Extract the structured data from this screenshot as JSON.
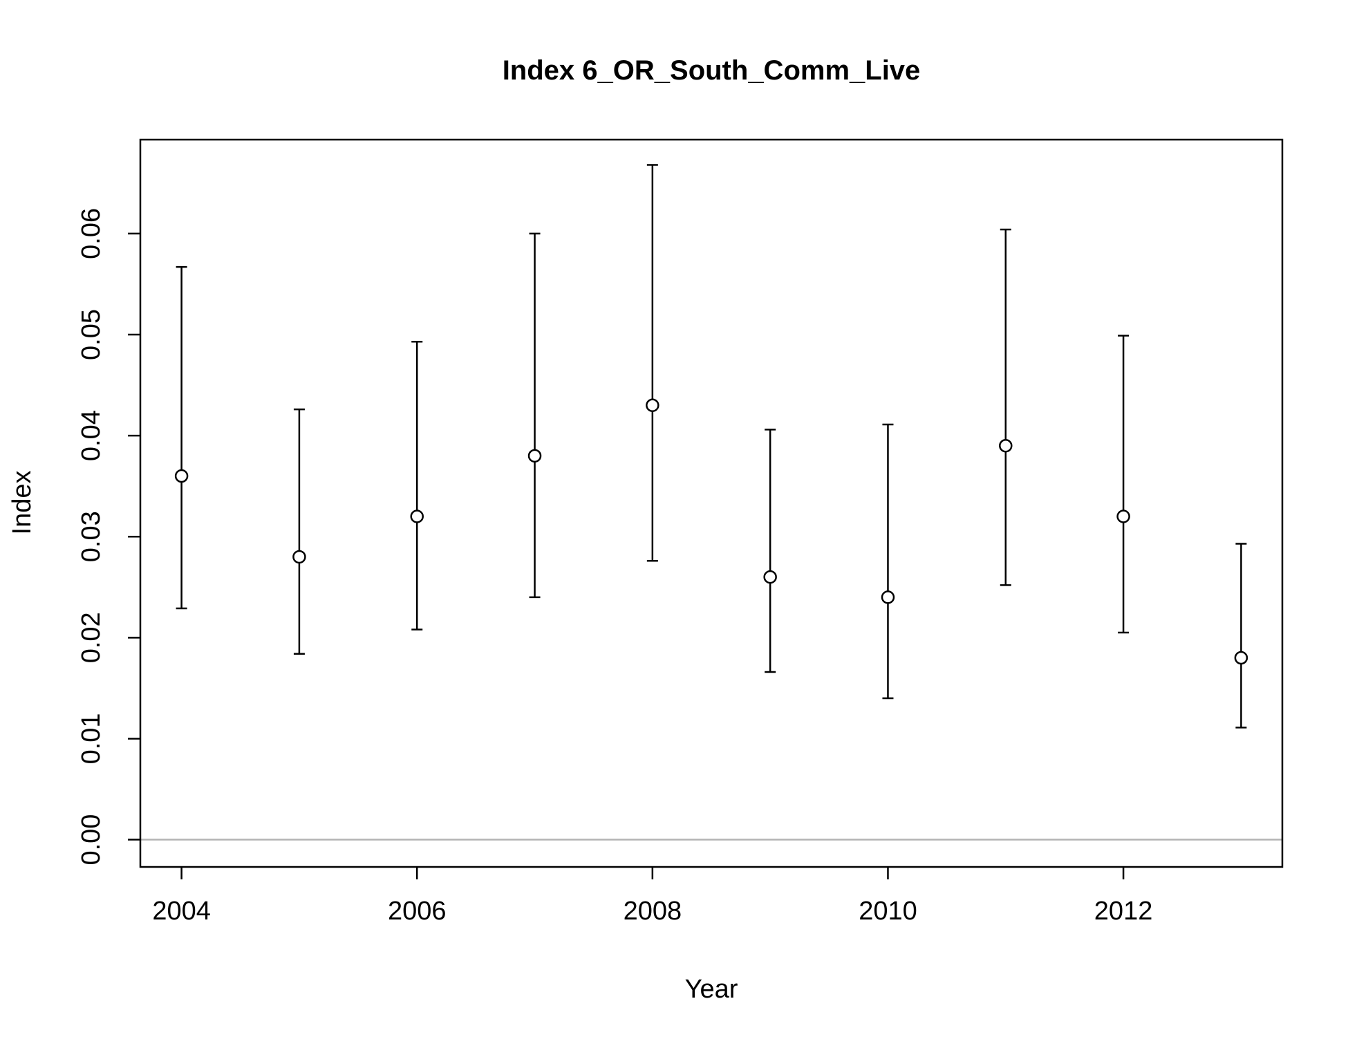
{
  "chart_data": {
    "type": "scatter",
    "title": "Index 6_OR_South_Comm_Live",
    "xlabel": "Year",
    "ylabel": "Index",
    "xlim": [
      2003.65,
      2013.35
    ],
    "ylim": [
      -0.0027,
      0.0693
    ],
    "x_ticks": [
      2004,
      2006,
      2008,
      2010,
      2012
    ],
    "x_tick_labels": [
      "2004",
      "2006",
      "2008",
      "2010",
      "2012"
    ],
    "y_ticks": [
      0,
      0.01,
      0.02,
      0.03,
      0.04,
      0.05,
      0.06
    ],
    "y_tick_labels": [
      "0.00",
      "0.01",
      "0.02",
      "0.03",
      "0.04",
      "0.05",
      "0.06"
    ],
    "reference_line": {
      "y": 0,
      "color": "#b3b3b3"
    },
    "series": [
      {
        "x": [
          2004,
          2005,
          2006,
          2007,
          2008,
          2009,
          2010,
          2011,
          2012,
          2013
        ],
        "y": [
          0.036,
          0.028,
          0.032,
          0.038,
          0.043,
          0.026,
          0.024,
          0.039,
          0.032,
          0.018
        ],
        "lower": [
          0.0229,
          0.0184,
          0.0208,
          0.024,
          0.0276,
          0.0166,
          0.014,
          0.0252,
          0.0205,
          0.0111
        ],
        "upper": [
          0.0567,
          0.0426,
          0.0493,
          0.06,
          0.0668,
          0.0406,
          0.0411,
          0.0604,
          0.0499,
          0.0293
        ]
      }
    ],
    "grid": false,
    "legend": "none",
    "colors": {
      "points": "#000000",
      "errorbars": "#000000",
      "zero_line": "#b3b3b3"
    }
  }
}
